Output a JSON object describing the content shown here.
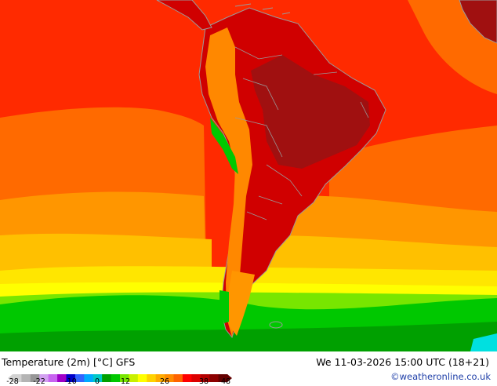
{
  "map": {
    "title": "Temperature (2m) [°C] GFS",
    "datetime": "We 11-03-2026 15:00 UTC (18+21)",
    "credit": "©weatheronline.co.uk",
    "legend": {
      "ticks": [
        "-28",
        "-22",
        "-10",
        "0",
        "12",
        "26",
        "38",
        "48"
      ],
      "colors": [
        "#d2d2d2",
        "#b4b4b4",
        "#969696",
        "#d2a0f0",
        "#c864f0",
        "#a000c8",
        "#0000c8",
        "#3264ff",
        "#00aaff",
        "#00c8c8",
        "#00a000",
        "#00c800",
        "#78e600",
        "#c8f000",
        "#ffff00",
        "#ffd200",
        "#ffaa00",
        "#ff8c00",
        "#ff6400",
        "#ff0000",
        "#dc0000",
        "#b40000",
        "#8c0000",
        "#640000"
      ]
    },
    "colors": {
      "ocean_hot": "#ff2a00",
      "ocean_warm": "#ff6a00",
      "ocean_mid": "#ff9600",
      "ocean_mild": "#ffc000",
      "ocean_cool": "#ffe600",
      "ocean_cold": "#ffff00",
      "green_band": "#00c800",
      "green_dark": "#00a000",
      "cyan": "#00e0e0",
      "land_hot": "#d00000",
      "land_hottest": "#a01010",
      "andes": "#ff8800",
      "border": "#9a9a9a"
    }
  }
}
